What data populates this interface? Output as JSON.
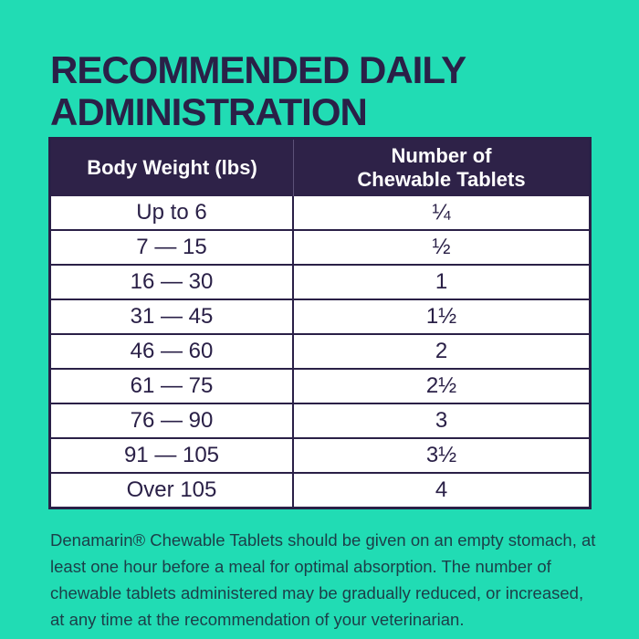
{
  "title": {
    "line1": "RECOMMENDED DAILY",
    "line2": "ADMINISTRATION"
  },
  "table": {
    "header": {
      "body_weight": "Body Weight (lbs)",
      "tablets_line1": "Number of",
      "tablets_line2": "Chewable Tablets"
    },
    "rows": [
      {
        "weight": "Up to 6",
        "tablets": "¼"
      },
      {
        "weight": "7 — 15",
        "tablets": "½"
      },
      {
        "weight": "16 — 30",
        "tablets": "1"
      },
      {
        "weight": "31 — 45",
        "tablets": "1½"
      },
      {
        "weight": "46 — 60",
        "tablets": "2"
      },
      {
        "weight": "61 — 75",
        "tablets": "2½"
      },
      {
        "weight": "76 — 90",
        "tablets": "3"
      },
      {
        "weight": "91 — 105",
        "tablets": "3½"
      },
      {
        "weight": "Over 105",
        "tablets": "4"
      }
    ]
  },
  "footer": {
    "text": "Denamarin® Chewable Tablets should be given on an empty stomach, at least one hour before a meal for optimal absorption. The number of chewable tablets administered may be gradually reduced, or increased, at any time at the recommendation of your veterinarian."
  },
  "colors": {
    "background": "#21dcb4",
    "title_text": "#2a2047",
    "table_header_bg": "#2e2248",
    "table_header_text": "#ffffff",
    "table_border": "#2a2047",
    "row_text": "#2a2047",
    "row_bg": "#ffffff",
    "footer_text": "#1c3e48"
  }
}
